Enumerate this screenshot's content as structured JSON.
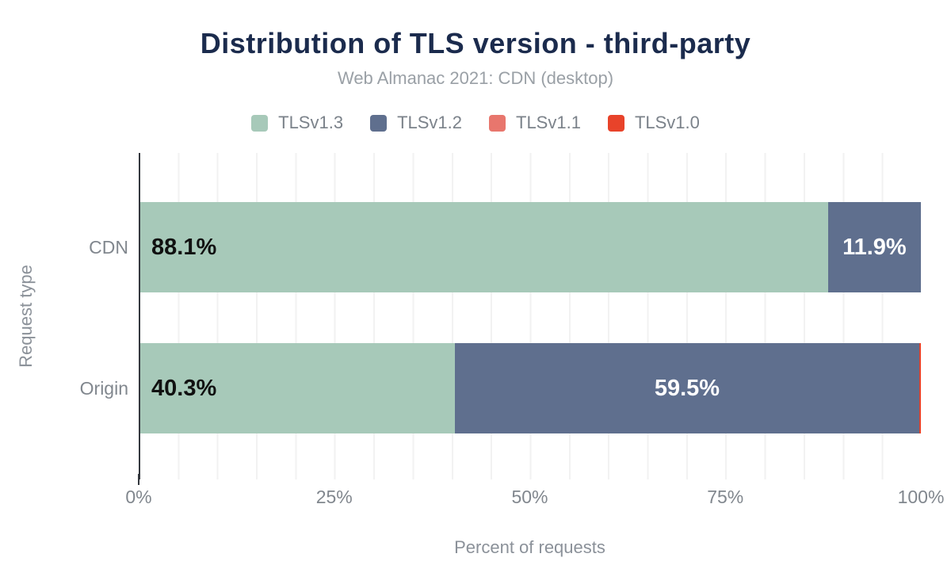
{
  "chart": {
    "title": "Distribution of TLS version - third-party",
    "subtitle": "Web Almanac 2021: CDN (desktop)",
    "legend": [
      {
        "label": "TLSv1.3",
        "color": "#a7c9b9"
      },
      {
        "label": "TLSv1.2",
        "color": "#5f6f8e"
      },
      {
        "label": "TLSv1.1",
        "color": "#e8766d"
      },
      {
        "label": "TLSv1.0",
        "color": "#e8432a"
      }
    ],
    "y_axis_title": "Request type",
    "x_axis_title": "Percent of requests",
    "x_tick_labels": [
      "0%",
      "25%",
      "50%",
      "75%",
      "100%"
    ]
  },
  "chart_data": {
    "type": "bar",
    "orientation": "horizontal",
    "stacked": true,
    "title": "Distribution of TLS version - third-party",
    "subtitle": "Web Almanac 2021: CDN (desktop)",
    "xlabel": "Percent of requests",
    "ylabel": "Request type",
    "xlim": [
      0,
      100
    ],
    "x_ticks": [
      0,
      25,
      50,
      75,
      100
    ],
    "grid": "vertical gridlines every 5%",
    "legend_position": "top",
    "categories": [
      "CDN",
      "Origin"
    ],
    "series": [
      {
        "name": "TLSv1.3",
        "color": "#a7c9b9",
        "label_color": "#111111",
        "values": [
          88.1,
          40.3
        ]
      },
      {
        "name": "TLSv1.2",
        "color": "#5f6f8e",
        "label_color": "#ffffff",
        "values": [
          11.9,
          59.5
        ]
      },
      {
        "name": "TLSv1.1",
        "color": "#e8766d",
        "label_color": "#ffffff",
        "values": [
          0.0,
          0.0
        ]
      },
      {
        "name": "TLSv1.0",
        "color": "#e8432a",
        "label_color": "#ffffff",
        "values": [
          0.0,
          0.2
        ]
      }
    ],
    "bar_labels": [
      [
        "88.1%",
        "11.9%",
        "",
        ""
      ],
      [
        "40.3%",
        "59.5%",
        "",
        ""
      ]
    ]
  }
}
